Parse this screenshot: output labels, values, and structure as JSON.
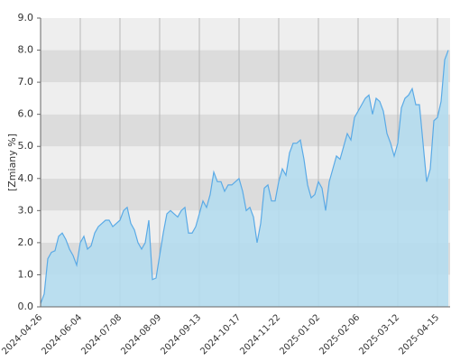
{
  "chart_data": {
    "type": "area",
    "y_label": "[Zmiany %]",
    "categories": [
      "2024-04-26",
      null,
      null,
      null,
      null,
      null,
      null,
      null,
      null,
      null,
      null,
      "2024-06-04",
      null,
      null,
      null,
      null,
      null,
      null,
      null,
      null,
      null,
      null,
      "2024-07-08",
      null,
      null,
      null,
      null,
      null,
      null,
      null,
      null,
      null,
      null,
      "2024-08-09",
      null,
      null,
      null,
      null,
      null,
      null,
      null,
      null,
      null,
      null,
      "2024-09-13",
      null,
      null,
      null,
      null,
      null,
      null,
      null,
      null,
      null,
      null,
      "2024-10-17",
      null,
      null,
      null,
      null,
      null,
      null,
      null,
      null,
      null,
      null,
      "2024-11-22",
      null,
      null,
      null,
      null,
      null,
      null,
      null,
      null,
      null,
      null,
      "2025-01-02",
      null,
      null,
      null,
      null,
      null,
      null,
      null,
      null,
      null,
      null,
      "2025-02-06",
      null,
      null,
      null,
      null,
      null,
      null,
      null,
      null,
      null,
      null,
      "2025-03-12",
      null,
      null,
      null,
      null,
      null,
      null,
      null,
      null,
      null,
      null,
      "2025-04-15",
      null,
      null,
      null
    ],
    "values": [
      0.1,
      0.4,
      1.5,
      1.7,
      1.75,
      2.2,
      2.3,
      2.1,
      1.8,
      1.6,
      1.3,
      2.0,
      2.2,
      1.8,
      1.9,
      2.3,
      2.5,
      2.6,
      2.7,
      2.7,
      2.5,
      2.6,
      2.7,
      3.0,
      3.1,
      2.6,
      2.4,
      2.0,
      1.8,
      2.0,
      2.7,
      0.85,
      0.9,
      1.6,
      2.3,
      2.9,
      3.0,
      2.9,
      2.8,
      3.0,
      3.1,
      2.3,
      2.3,
      2.5,
      2.9,
      3.3,
      3.1,
      3.5,
      4.2,
      3.9,
      3.9,
      3.6,
      3.8,
      3.8,
      3.9,
      4.0,
      3.6,
      3.0,
      3.1,
      2.8,
      2.0,
      2.6,
      3.7,
      3.8,
      3.3,
      3.3,
      3.9,
      4.3,
      4.1,
      4.8,
      5.1,
      5.1,
      5.2,
      4.6,
      3.8,
      3.4,
      3.5,
      3.9,
      3.7,
      3.0,
      3.9,
      4.3,
      4.7,
      4.6,
      5.0,
      5.4,
      5.2,
      5.9,
      6.1,
      6.3,
      6.5,
      6.6,
      6.0,
      6.5,
      6.4,
      6.1,
      5.4,
      5.1,
      4.7,
      5.1,
      6.2,
      6.5,
      6.6,
      6.8,
      6.3,
      6.3,
      5.1,
      3.9,
      4.3,
      5.8,
      5.9,
      6.4,
      7.7,
      8.0
    ],
    "line_color": "#5aaae6",
    "fill_color": "#b4dcee",
    "ylim": [
      0,
      9
    ],
    "yticks": [
      {
        "value": 0,
        "label": "0.0"
      },
      {
        "value": 1,
        "label": "1.0"
      },
      {
        "value": 2,
        "label": "2.0"
      },
      {
        "value": 3,
        "label": "3.0"
      },
      {
        "value": 4,
        "label": "4.0"
      },
      {
        "value": 5,
        "label": "5.0"
      },
      {
        "value": 6,
        "label": "6.0"
      },
      {
        "value": 7,
        "label": "7.0"
      },
      {
        "value": 8,
        "label": "8.0"
      },
      {
        "value": 9,
        "label": "9.0"
      }
    ],
    "grid": true
  }
}
